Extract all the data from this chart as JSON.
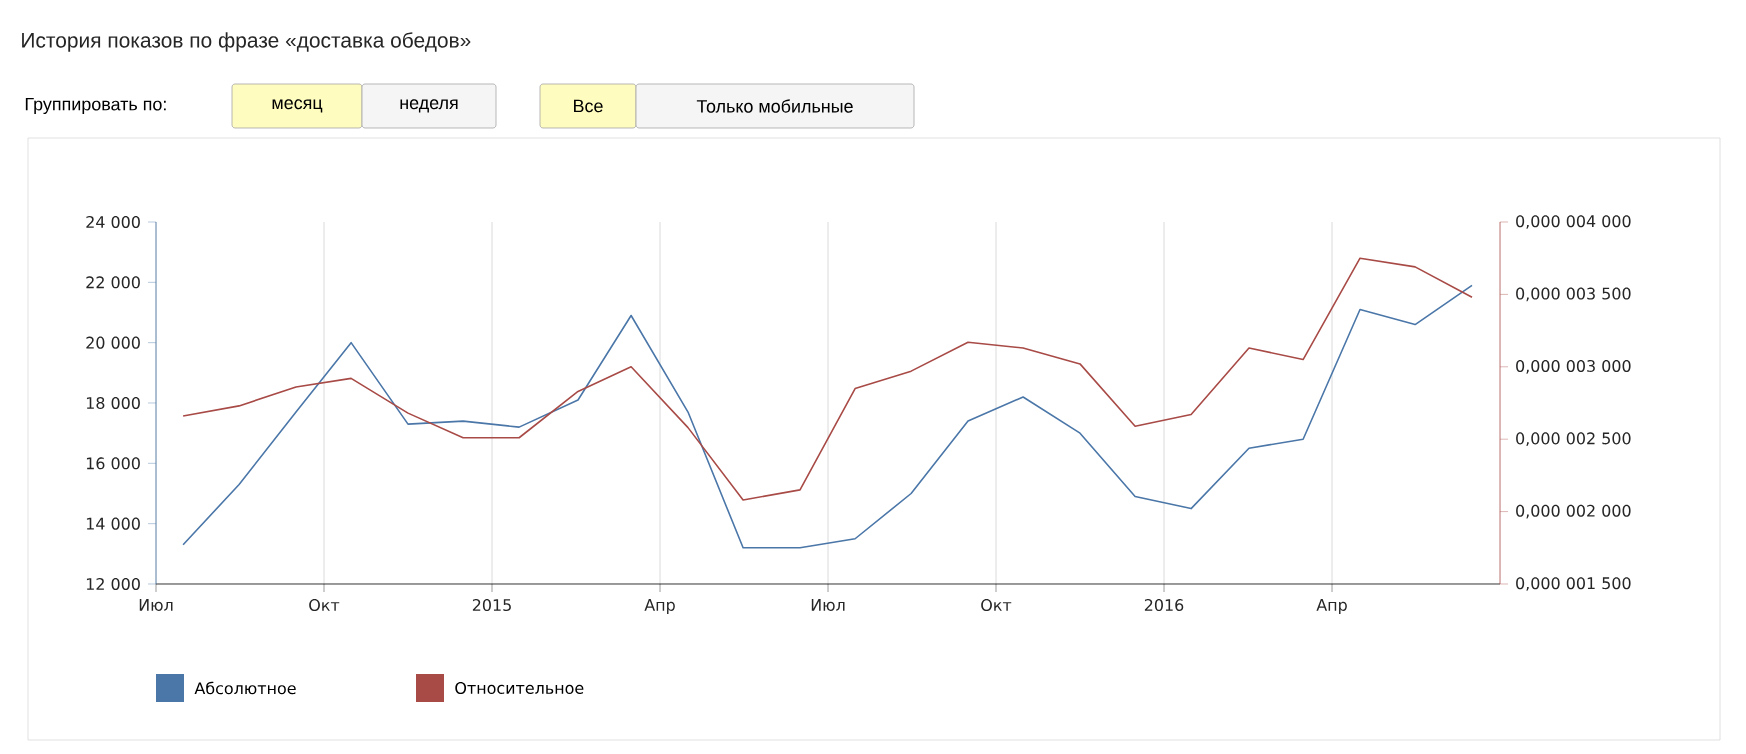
{
  "chart_data": {
    "type": "line",
    "title": "История показов по фразе «доставка обедов»",
    "annotations": [
      "Группировать по:",
      "месяц",
      "неделя",
      "Все",
      "Только мобильные"
    ],
    "x": [
      "2014-07-16",
      "2014-08-16",
      "2014-09-16",
      "2014-10-16",
      "2014-11-16",
      "2014-12-16",
      "2015-01-16",
      "2015-02-16",
      "2015-03-16",
      "2015-04-16",
      "2015-05-16",
      "2015-06-16",
      "2015-07-16",
      "2015-08-16",
      "2015-09-16",
      "2015-10-16",
      "2015-11-16",
      "2015-12-16",
      "2016-01-16",
      "2016-02-16",
      "2016-03-16",
      "2016-04-16",
      "2016-05-16",
      "2016-06-16"
    ],
    "series": [
      {
        "name": "Абсолютное",
        "color": "#4a76a8",
        "values": [
          13300,
          15300,
          17700,
          20000,
          17300,
          17400,
          17200,
          18100,
          20900,
          17700,
          13200,
          13200,
          13500,
          15000,
          17400,
          18200,
          17000,
          14900,
          14500,
          16500,
          16800,
          21100,
          20600,
          21900
        ]
      },
      {
        "name": "Относительное",
        "color": "#a84a46",
        "axis": "y2",
        "values": [
          2.66e-06,
          2.73e-06,
          2.86e-06,
          2.92e-06,
          2.68e-06,
          2.51e-06,
          2.51e-06,
          2.83e-06,
          3e-06,
          2.58e-06,
          2.08e-06,
          2.15e-06,
          2.85e-06,
          2.97e-06,
          3.17e-06,
          3.13e-06,
          3.02e-06,
          2.59e-06,
          2.67e-06,
          3.13e-06,
          3.05e-06,
          3.75e-06,
          3.69e-06,
          3.48e-06
        ]
      }
    ],
    "xlim": [
      "2014-07-01",
      "2016-07-01"
    ],
    "xticks": [
      {
        "value": "2014-07-01",
        "label": "Июл"
      },
      {
        "value": "2014-10-01",
        "label": "Окт"
      },
      {
        "value": "2015-01-01",
        "label": "2015"
      },
      {
        "value": "2015-04-01",
        "label": "Апр"
      },
      {
        "value": "2015-07-01",
        "label": "Июл"
      },
      {
        "value": "2015-10-01",
        "label": "Окт"
      },
      {
        "value": "2016-01-01",
        "label": "2016"
      },
      {
        "value": "2016-04-01",
        "label": "Апр"
      }
    ],
    "ylim": [
      12000,
      24000
    ],
    "yticks": [
      {
        "value": 12000,
        "label": "12 000"
      },
      {
        "value": 14000,
        "label": "14 000"
      },
      {
        "value": 16000,
        "label": "16 000"
      },
      {
        "value": 18000,
        "label": "18 000"
      },
      {
        "value": 20000,
        "label": "20 000"
      },
      {
        "value": 22000,
        "label": "22 000"
      },
      {
        "value": 24000,
        "label": "24 000"
      }
    ],
    "y2lim": [
      1.5e-06,
      4e-06
    ],
    "y2ticks": [
      {
        "value": 1.5e-06,
        "label": "0,000 001 500"
      },
      {
        "value": 2e-06,
        "label": "0,000 002 000"
      },
      {
        "value": 2.5e-06,
        "label": "0,000 002 500"
      },
      {
        "value": 3e-06,
        "label": "0,000 003 000"
      },
      {
        "value": 3.5e-06,
        "label": "0,000 003 500"
      },
      {
        "value": 4e-06,
        "label": "0,000 004 000"
      }
    ],
    "grid": "x",
    "legend": "bottom left",
    "line_style": "solid"
  }
}
